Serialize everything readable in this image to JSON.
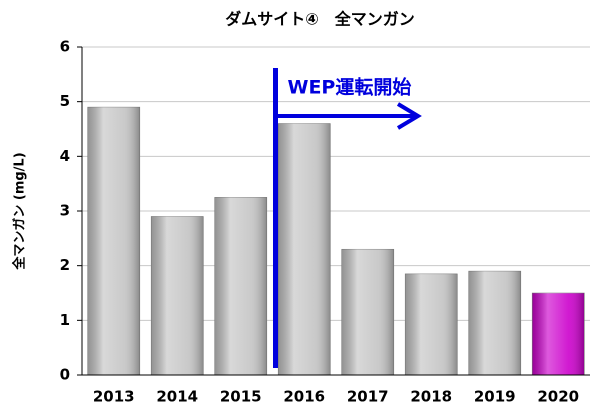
{
  "chart_data": {
    "type": "bar",
    "title": "ダムサイト④　全マンガン",
    "ylabel": "全マンガン (mg/L)",
    "categories": [
      "2013",
      "2014",
      "2015",
      "2016",
      "2017",
      "2018",
      "2019",
      "2020"
    ],
    "values": [
      4.9,
      2.9,
      3.25,
      4.6,
      2.3,
      1.85,
      1.9,
      1.5
    ],
    "colors": [
      "#c4c4c4",
      "#c4c4c4",
      "#c4c4c4",
      "#c4c4c4",
      "#c4c4c4",
      "#c4c4c4",
      "#c4c4c4",
      "#cc00cc"
    ],
    "ylim": [
      0,
      6
    ],
    "yticks": [
      0,
      1,
      2,
      3,
      4,
      5,
      6
    ],
    "grid": true,
    "annotation": "WEP運転開始",
    "annotation_color": "#0000dd"
  }
}
